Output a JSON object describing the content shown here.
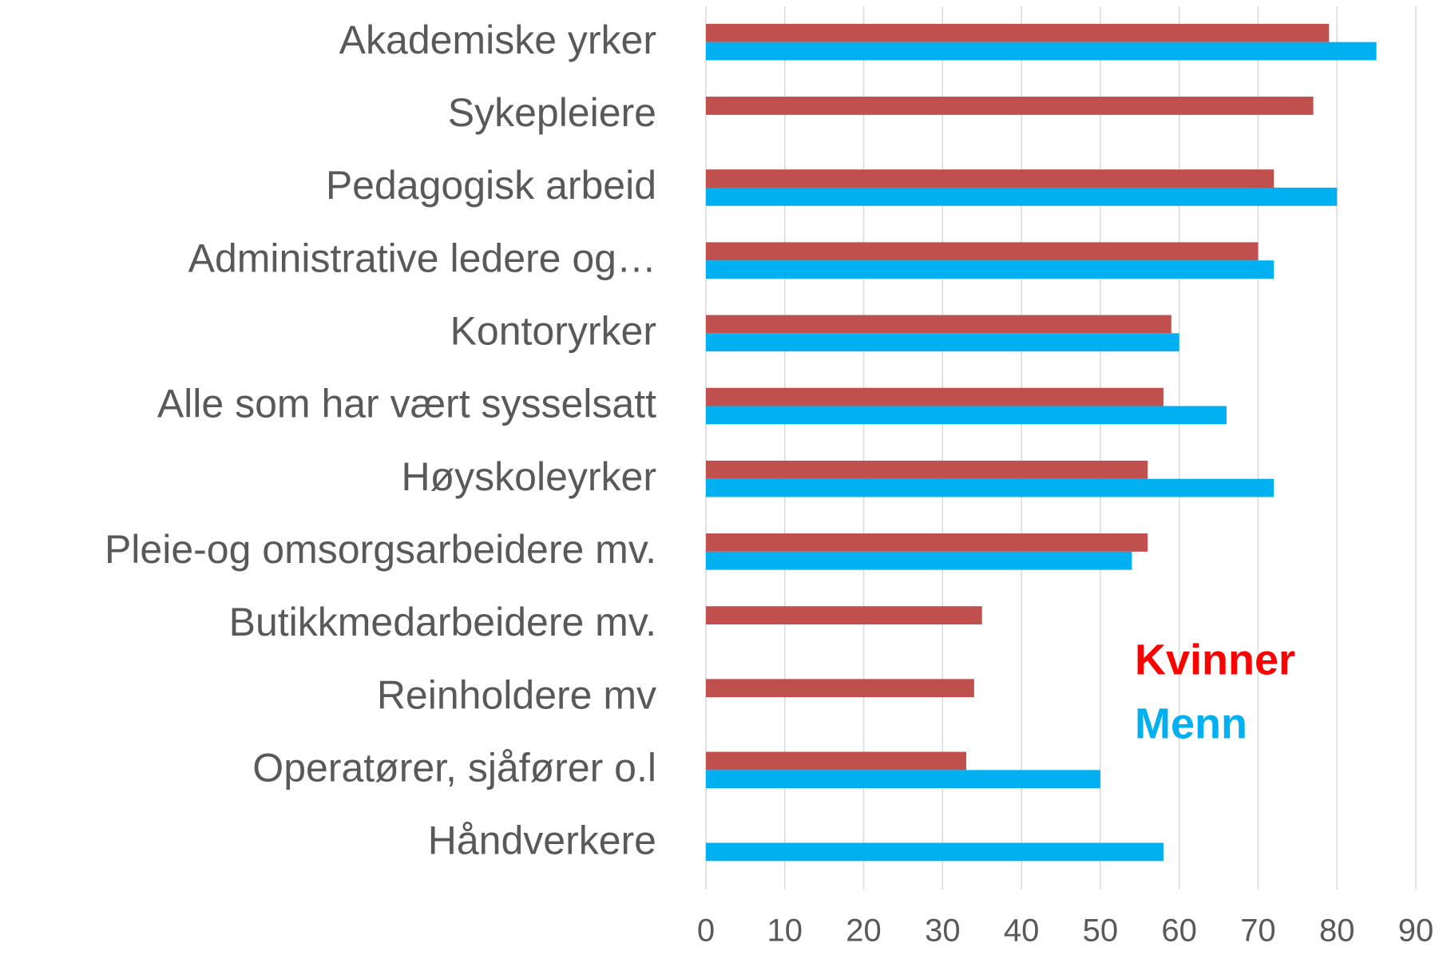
{
  "chart_data": {
    "type": "hbar",
    "categories": [
      "Akademiske yrker",
      "Sykepleiere",
      "Pedagogisk arbeid",
      "Administrative ledere og…",
      "Kontoryrker",
      "Alle som har vært sysselsatt",
      "Høyskoleyrker",
      "Pleie-og omsorgsarbeidere mv.",
      "Butikkmedarbeidere mv.",
      "Reinholdere mv",
      "Operatører, sjåfører o.l",
      "Håndverkere"
    ],
    "series": [
      {
        "name": "Kvinner",
        "color": "#c0504d",
        "label_color": "#ff0000",
        "values": [
          79,
          77,
          72,
          70,
          59,
          58,
          56,
          56,
          35,
          34,
          33,
          null
        ]
      },
      {
        "name": "Menn",
        "color": "#00b0f0",
        "label_color": "#00b0f0",
        "values": [
          85,
          null,
          80,
          72,
          60,
          66,
          72,
          54,
          null,
          null,
          50,
          58
        ]
      }
    ],
    "xlim": [
      0,
      90
    ],
    "xticks": [
      0,
      10,
      20,
      30,
      40,
      50,
      60,
      70,
      80,
      90
    ],
    "grid": true
  }
}
